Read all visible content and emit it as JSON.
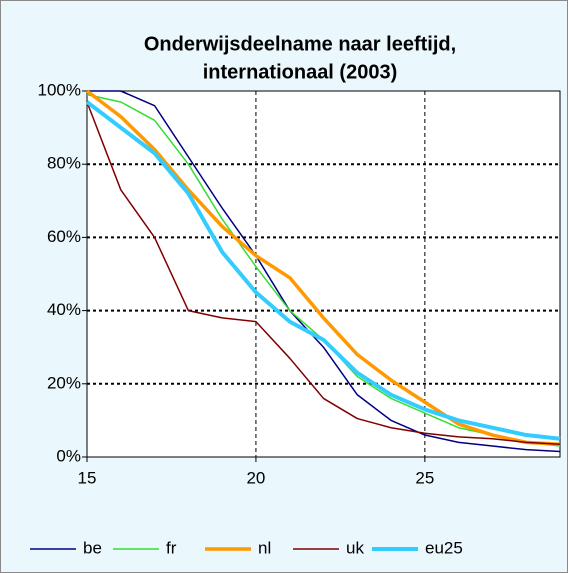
{
  "chart_data": {
    "type": "line",
    "title": [
      "Onderwijsdeelname naar leeftijd,",
      "internationaal (2003)"
    ],
    "x": [
      15,
      16,
      17,
      18,
      19,
      20,
      21,
      22,
      23,
      24,
      25,
      26,
      27,
      28,
      29
    ],
    "series": [
      {
        "name": "be",
        "color": "#000080",
        "values": [
          100,
          100,
          96,
          82,
          68,
          55,
          40,
          30,
          17,
          10,
          6,
          4,
          3,
          2,
          1.5
        ]
      },
      {
        "name": "fr",
        "color": "#33dd33",
        "values": [
          99,
          97,
          92,
          80,
          65,
          52,
          40,
          32,
          22,
          16,
          12,
          8,
          6,
          4,
          3
        ]
      },
      {
        "name": "nl",
        "color": "#ff9900",
        "values": [
          100,
          93,
          84,
          73,
          63,
          55,
          49,
          38,
          28,
          21,
          15,
          9,
          6,
          4,
          3.5
        ]
      },
      {
        "name": "uk",
        "color": "#800000",
        "values": [
          97,
          73,
          60,
          40,
          38,
          37,
          27,
          16,
          10.5,
          8,
          6.5,
          5.5,
          5,
          4,
          3.5
        ]
      },
      {
        "name": "eu25",
        "color": "#33ccff",
        "values": [
          97,
          90,
          83,
          72,
          56,
          45,
          37,
          32,
          23,
          17,
          13,
          10,
          8,
          6,
          5
        ]
      }
    ],
    "xlim": [
      15,
      29
    ],
    "xticks": [
      15,
      20,
      25
    ],
    "ylim": [
      0,
      100
    ],
    "yticks": [
      {
        "value": 0,
        "label": "0%"
      },
      {
        "value": 20,
        "label": "20%"
      },
      {
        "value": 40,
        "label": "40%"
      },
      {
        "value": 60,
        "label": "60%"
      },
      {
        "value": 80,
        "label": "80%"
      },
      {
        "value": 100,
        "label": "100%"
      }
    ],
    "grid": true,
    "legend": "bottom"
  }
}
